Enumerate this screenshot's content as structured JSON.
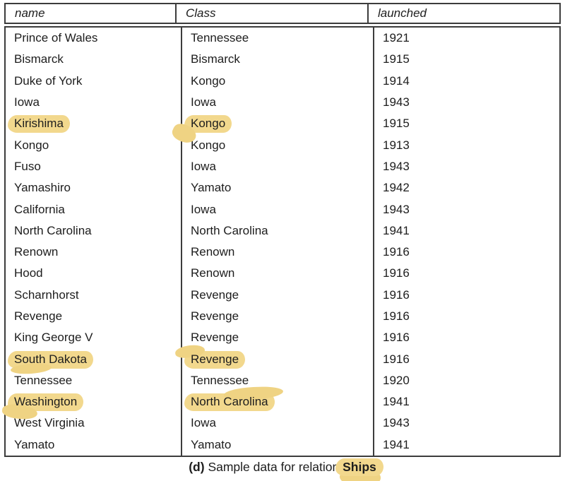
{
  "figure": {
    "caption": {
      "prefix": "(d)",
      "text": "Sample data for relation",
      "relation": "Ships"
    }
  },
  "table": {
    "columns": [
      {
        "key": "name",
        "label": "name"
      },
      {
        "key": "class",
        "label": "Class"
      },
      {
        "key": "launched",
        "label": "launched"
      }
    ],
    "rows": [
      {
        "name": "Prince of Wales",
        "class": "Tennessee",
        "launched": "1921"
      },
      {
        "name": "Bismarck",
        "class": "Bismarck",
        "launched": "1915"
      },
      {
        "name": "Duke of York",
        "class": "Kongo",
        "launched": "1914"
      },
      {
        "name": "Iowa",
        "class": "Iowa",
        "launched": "1943"
      },
      {
        "name": "Kirishima",
        "class": "Kongo",
        "launched": "1915",
        "highlight": {
          "name": true,
          "class": true
        }
      },
      {
        "name": "Kongo",
        "class": "Kongo",
        "launched": "1913"
      },
      {
        "name": "Fuso",
        "class": "Iowa",
        "launched": "1943"
      },
      {
        "name": "Yamashiro",
        "class": "Yamato",
        "launched": "1942"
      },
      {
        "name": "California",
        "class": "Iowa",
        "launched": "1943"
      },
      {
        "name": "North Carolina",
        "class": "North Carolina",
        "launched": "1941"
      },
      {
        "name": "Renown",
        "class": "Renown",
        "launched": "1916"
      },
      {
        "name": "Hood",
        "class": "Renown",
        "launched": "1916"
      },
      {
        "name": "Scharnhorst",
        "class": "Revenge",
        "launched": "1916"
      },
      {
        "name": "Revenge",
        "class": "Revenge",
        "launched": "1916"
      },
      {
        "name": "King George V",
        "class": "Revenge",
        "launched": "1916"
      },
      {
        "name": "South Dakota",
        "class": "Revenge",
        "launched": "1916",
        "highlight": {
          "name": true,
          "class": true
        }
      },
      {
        "name": "Tennessee",
        "class": "Tennessee",
        "launched": "1920"
      },
      {
        "name": "Washington",
        "class": "North Carolina",
        "launched": "1941",
        "highlight": {
          "name": true,
          "class": true
        }
      },
      {
        "name": "West Virginia",
        "class": "Iowa",
        "launched": "1943"
      },
      {
        "name": "Yamato",
        "class": "Yamato",
        "launched": "1941"
      }
    ]
  },
  "colors": {
    "highlight_yellow": "#f2d88d",
    "highlight_edge": "#efd383",
    "border": "#3c3c3c",
    "text": "#1d1d1d",
    "background": "#ffffff"
  }
}
